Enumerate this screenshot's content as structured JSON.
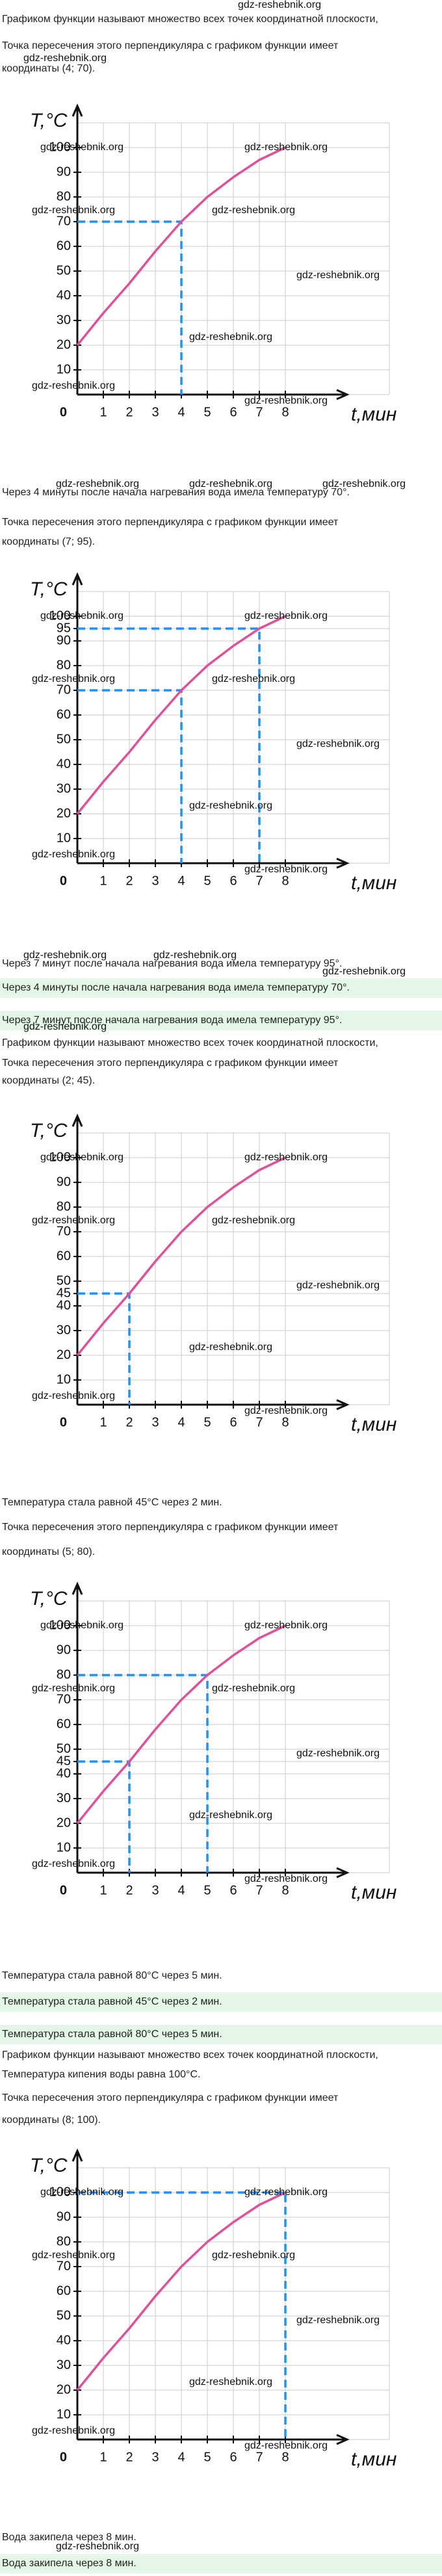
{
  "texts": [
    "Графиком функции называют множество всех точек координатной плоскости,",
    "Точка пересечения этого перпендикуляра с графиком функции имеет",
    "координаты (4; 70).",
    "Через 4 минуты после начала нагревания вода имела температуру 70°.",
    "Точка пересечения этого перпендикуляра с графиком функции имеет",
    "координаты (7; 95).",
    "Через 7 минут после начала нагревания вода имела температуру 95°.",
    "Через 4 минуты после начала нагревания вода имела температуру 70°.",
    "Через 7 минут после начала нагревания вода имела температуру 95°.",
    "Графиком функции называют множество всех точек координатной плоскости,",
    "Точка пересечения этого перпендикуляра с графиком функции имеет",
    "координаты (2; 45).",
    "Температура стала равной 45°C через 2 мин.",
    "Точка пересечения этого перпендикуляра с графиком функции имеет",
    "координаты (5; 80).",
    "Температура стала равной 80°C через 5 мин.",
    "Температура стала равной 45°C через 2 мин.",
    "Температура стала равной 80°C через 5 мин.",
    "Графиком функции называют множество всех точек координатной плоскости,",
    "Температура кипения воды равна 100°C.",
    "Точка пересечения этого перпендикуляра с графиком функции имеет",
    "координаты (8; 100).",
    "Вода закипела через 8 мин.",
    "Вода закипела через 8 мин."
  ],
  "watermarks": [
    "gdz-reshebnik.org",
    "gdz-reshebnik.org",
    "gdz-reshebnik.org",
    "gdz-reshebnik.org",
    "gdz-reshebnik.org",
    "gdz-reshebnik.org",
    "gdz-reshebnik.org",
    "gdz-reshebnik.org",
    "gdz-reshebnik.org",
    "gdz-reshebnik.org"
  ],
  "chart_data": [
    {
      "type": "line",
      "x": [
        0,
        1,
        2,
        3,
        4,
        5,
        6,
        7,
        8
      ],
      "values": [
        20,
        33,
        45,
        58,
        70,
        80,
        88,
        95,
        100
      ],
      "color": "#e0509a",
      "xlim": [
        0,
        12
      ],
      "ylim": [
        0,
        110
      ],
      "xticks": [
        1,
        2,
        3,
        4,
        5,
        6,
        7,
        8
      ],
      "yticks": [
        0,
        10,
        20,
        30,
        40,
        50,
        60,
        70,
        80,
        90,
        100
      ],
      "xlabel": "t,мин",
      "ylabel": "T,°C",
      "grid": true,
      "highlight": {
        "x": [
          4
        ],
        "y": [
          70
        ],
        "color": "#1e90ff"
      },
      "watermarks": [
        "gdz-reshebnik.org",
        "gdz-reshebnik.org",
        "gdz-reshebnik.org",
        "gdz-reshebnik.org",
        "gdz-reshebnik.org",
        "gdz-reshebnik.org",
        "gdz-reshebnik.org",
        "gdz-reshebnik.org"
      ]
    },
    {
      "type": "line",
      "x": [
        0,
        1,
        2,
        3,
        4,
        5,
        6,
        7,
        8
      ],
      "values": [
        20,
        33,
        45,
        58,
        70,
        80,
        88,
        95,
        100
      ],
      "color": "#e0509a",
      "xlim": [
        0,
        12
      ],
      "ylim": [
        0,
        110
      ],
      "xticks": [
        1,
        2,
        3,
        4,
        5,
        6,
        7,
        8
      ],
      "yticks": [
        0,
        10,
        20,
        30,
        40,
        50,
        60,
        70,
        80,
        90,
        95,
        100
      ],
      "xlabel": "t,мин",
      "ylabel": "T,°C",
      "grid": true,
      "highlight": {
        "x": [
          4,
          7
        ],
        "y": [
          70,
          95
        ],
        "color": "#1e90ff"
      },
      "watermarks": [
        "gdz-reshebnik.org",
        "gdz-reshebnik.org",
        "gdz-reshebnik.org",
        "gdz-reshebnik.org",
        "gdz-reshebnik.org",
        "gdz-reshebnik.org",
        "gdz-reshebnik.org",
        "gdz-reshebnik.org"
      ]
    },
    {
      "type": "line",
      "x": [
        0,
        1,
        2,
        3,
        4,
        5,
        6,
        7,
        8
      ],
      "values": [
        20,
        33,
        45,
        58,
        70,
        80,
        88,
        95,
        100
      ],
      "color": "#e0509a",
      "xlim": [
        0,
        12
      ],
      "ylim": [
        0,
        110
      ],
      "xticks": [
        1,
        2,
        3,
        4,
        5,
        6,
        7,
        8
      ],
      "yticks": [
        0,
        10,
        20,
        30,
        40,
        45,
        50,
        60,
        70,
        80,
        90,
        100
      ],
      "xlabel": "t,мин",
      "ylabel": "T,°C",
      "grid": true,
      "highlight": {
        "x": [
          2
        ],
        "y": [
          45
        ],
        "color": "#1e90ff"
      },
      "watermarks": [
        "gdz-reshebnik.org",
        "gdz-reshebnik.org",
        "gdz-reshebnik.org",
        "gdz-reshebnik.org",
        "gdz-reshebnik.org",
        "gdz-reshebnik.org",
        "gdz-reshebnik.org",
        "gdz-reshebnik.org"
      ]
    },
    {
      "type": "line",
      "x": [
        0,
        1,
        2,
        3,
        4,
        5,
        6,
        7,
        8
      ],
      "values": [
        20,
        33,
        45,
        58,
        70,
        80,
        88,
        95,
        100
      ],
      "color": "#e0509a",
      "xlim": [
        0,
        12
      ],
      "ylim": [
        0,
        110
      ],
      "xticks": [
        1,
        2,
        3,
        4,
        5,
        6,
        7,
        8
      ],
      "yticks": [
        0,
        10,
        20,
        30,
        40,
        45,
        50,
        60,
        70,
        80,
        90,
        100
      ],
      "xlabel": "t,мин",
      "ylabel": "T,°C",
      "grid": true,
      "highlight": {
        "x": [
          2,
          5
        ],
        "y": [
          45,
          80
        ],
        "color": "#1e90ff"
      },
      "watermarks": [
        "gdz-reshebnik.org",
        "gdz-reshebnik.org",
        "gdz-reshebnik.org",
        "gdz-reshebnik.org",
        "gdz-reshebnik.org",
        "gdz-reshebnik.org",
        "gdz-reshebnik.org",
        "gdz-reshebnik.org"
      ]
    },
    {
      "type": "line",
      "x": [
        0,
        1,
        2,
        3,
        4,
        5,
        6,
        7,
        8
      ],
      "values": [
        20,
        33,
        45,
        58,
        70,
        80,
        88,
        95,
        100
      ],
      "color": "#e0509a",
      "xlim": [
        0,
        12
      ],
      "ylim": [
        0,
        110
      ],
      "xticks": [
        1,
        2,
        3,
        4,
        5,
        6,
        7,
        8
      ],
      "yticks": [
        0,
        10,
        20,
        30,
        40,
        50,
        60,
        70,
        80,
        90,
        100
      ],
      "xlabel": "t,мин",
      "ylabel": "T,°C",
      "grid": true,
      "highlight": {
        "x": [
          8
        ],
        "y": [
          100
        ],
        "color": "#1e90ff"
      },
      "watermarks": [
        "gdz-reshebnik.org",
        "gdz-reshebnik.org",
        "gdz-reshebnik.org",
        "gdz-reshebnik.org",
        "gdz-reshebnik.org",
        "gdz-reshebnik.org",
        "gdz-reshebnik.org",
        "gdz-reshebnik.org"
      ]
    }
  ]
}
